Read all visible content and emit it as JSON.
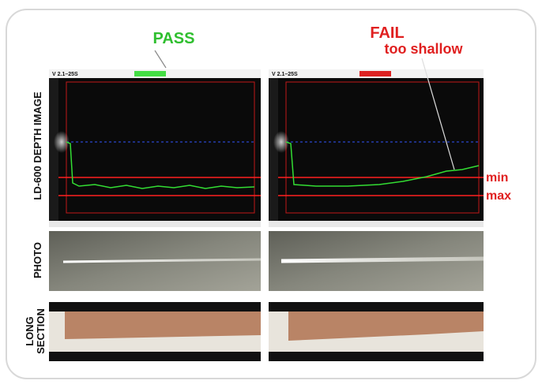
{
  "labels": {
    "pass": "PASS",
    "fail": "FAIL",
    "fail_reason": "too shallow",
    "min": "min",
    "max": "max"
  },
  "rows": {
    "depth": "LD-600 DEPTH IMAGE",
    "photo": "PHOTO",
    "section": [
      "LONG",
      "SECTION"
    ]
  },
  "panels": {
    "left_version": "V 2.1–25S",
    "right_version": "V 2.1–25S"
  }
}
